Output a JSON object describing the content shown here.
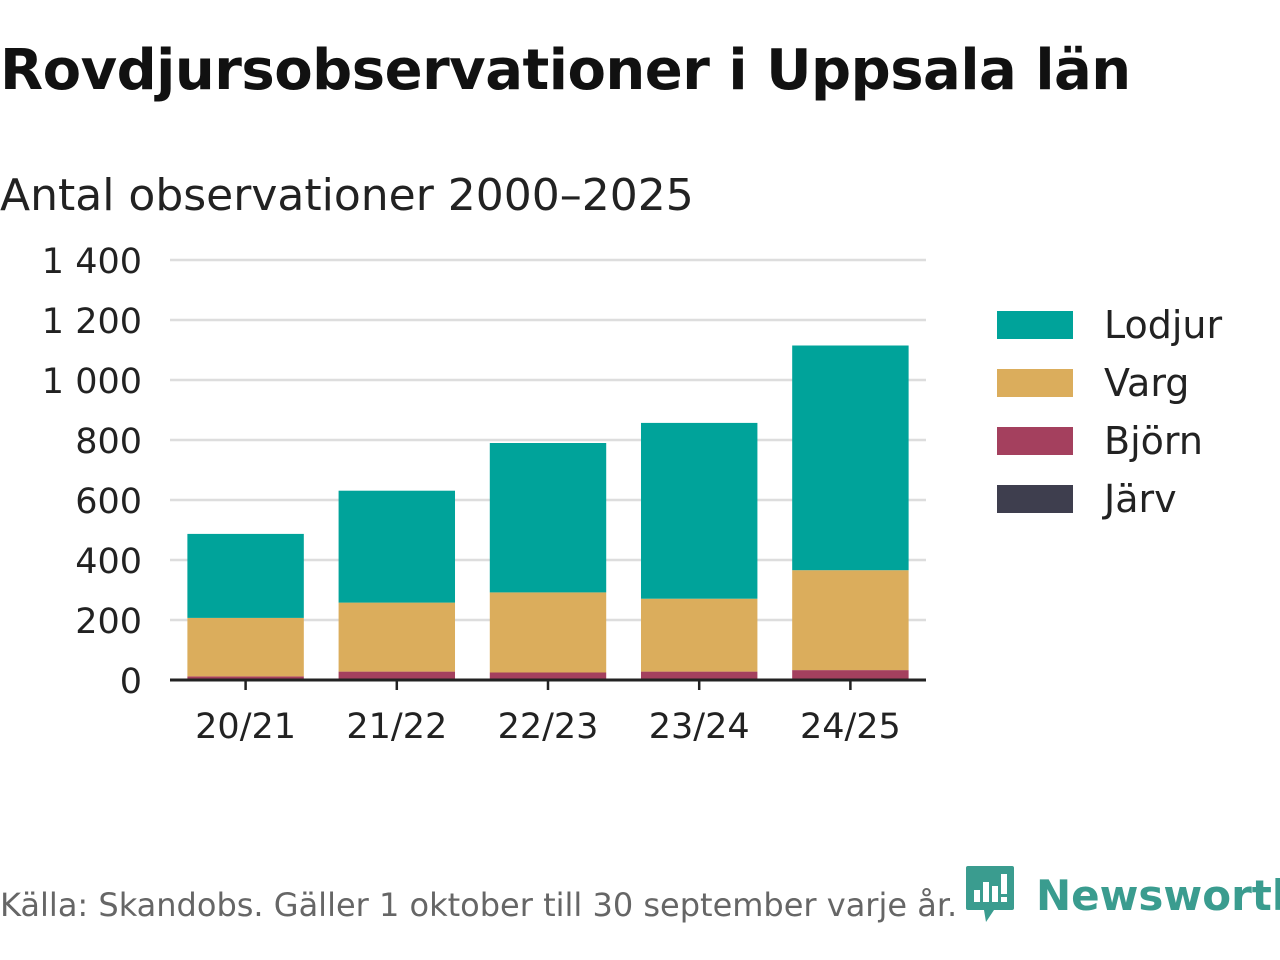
{
  "title": "Rovdjursobservationer i Uppsala län",
  "subtitle": "Antal observationer 2000–2025",
  "source": "Källa: Skandobs. Gäller 1 oktober till 30 september varje år.",
  "brand": {
    "name": "Newsworthy",
    "color": "#3a9c8f",
    "icon": "newsworthy-logo-icon"
  },
  "colors": {
    "lodjur": "#00a39a",
    "varg": "#dbad5c",
    "bjorn": "#a4405e",
    "jarv": "#3e3e4e",
    "grid": "#dddddd",
    "axis": "#222222"
  },
  "chart_data": {
    "type": "bar",
    "stacked": true,
    "title": "Rovdjursobservationer i Uppsala län",
    "subtitle": "Antal observationer 2000–2025",
    "xlabel": "",
    "ylabel": "",
    "ylim": [
      0,
      1400
    ],
    "yticks": [
      0,
      200,
      400,
      600,
      800,
      1000,
      1200,
      1400
    ],
    "ytick_labels": [
      "0",
      "200",
      "400",
      "600",
      "800",
      "1 000",
      "1 200",
      "1 400"
    ],
    "categories": [
      "20/21",
      "21/22",
      "22/23",
      "23/24",
      "24/25"
    ],
    "series": [
      {
        "name": "Järv",
        "key": "jarv",
        "values": [
          2,
          5,
          3,
          4,
          2
        ]
      },
      {
        "name": "Björn",
        "key": "bjorn",
        "values": [
          10,
          23,
          22,
          24,
          31
        ]
      },
      {
        "name": "Varg",
        "key": "varg",
        "values": [
          195,
          230,
          267,
          243,
          333
        ]
      },
      {
        "name": "Lodjur",
        "key": "lodjur",
        "values": [
          280,
          373,
          498,
          586,
          749
        ]
      }
    ],
    "legend_order": [
      "Lodjur",
      "Varg",
      "Björn",
      "Järv"
    ],
    "legend_position": "right",
    "grid": true
  }
}
